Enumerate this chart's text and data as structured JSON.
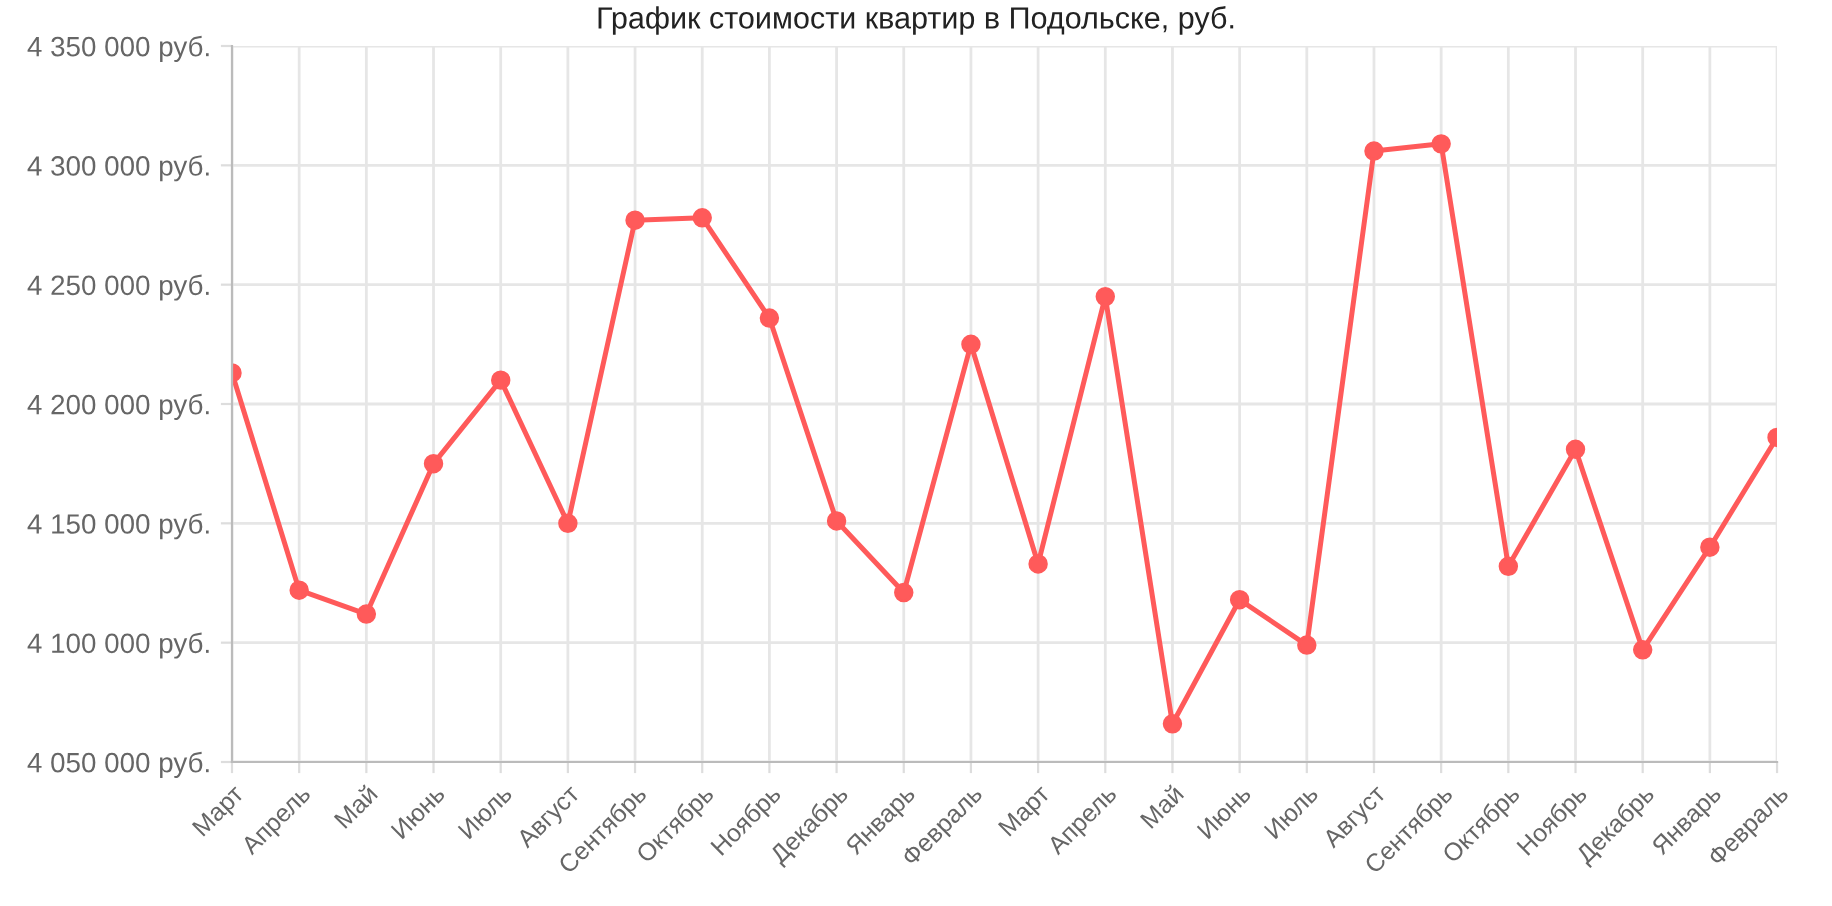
{
  "chart_data": {
    "type": "line",
    "title": "График стоимости квартир в Подольске, руб.",
    "categories": [
      "Март",
      "Апрель",
      "Май",
      "Июнь",
      "Июль",
      "Август",
      "Сентябрь",
      "Октябрь",
      "Ноябрь",
      "Декабрь",
      "Январь",
      "Февраль",
      "Март",
      "Апрель",
      "Май",
      "Июнь",
      "Июль",
      "Август",
      "Сентябрь",
      "Октябрь",
      "Ноябрь",
      "Декабрь",
      "Январь",
      "Февраль"
    ],
    "series": [
      {
        "color": "#ff5a5a",
        "values": [
          4213000,
          4122000,
          4112000,
          4175000,
          4210000,
          4150000,
          4277000,
          4278000,
          4236000,
          4151000,
          4121000,
          4225000,
          4133000,
          4245000,
          4066000,
          4118000,
          4099000,
          4306000,
          4309000,
          4132000,
          4181000,
          4097000,
          4140000,
          4186000
        ]
      }
    ],
    "ylim": [
      4050000,
      4350000
    ],
    "yticks": [
      {
        "value": 4050000,
        "label": "4 050 000 руб."
      },
      {
        "value": 4100000,
        "label": "4 100 000 руб."
      },
      {
        "value": 4150000,
        "label": "4 150 000 руб."
      },
      {
        "value": 4200000,
        "label": "4 200 000 руб."
      },
      {
        "value": 4250000,
        "label": "4 250 000 руб."
      },
      {
        "value": 4300000,
        "label": "4 300 000 руб."
      },
      {
        "value": 4350000,
        "label": "4 350 000 руб."
      }
    ],
    "grid": true,
    "marker": "circle",
    "line_style": "solid"
  }
}
